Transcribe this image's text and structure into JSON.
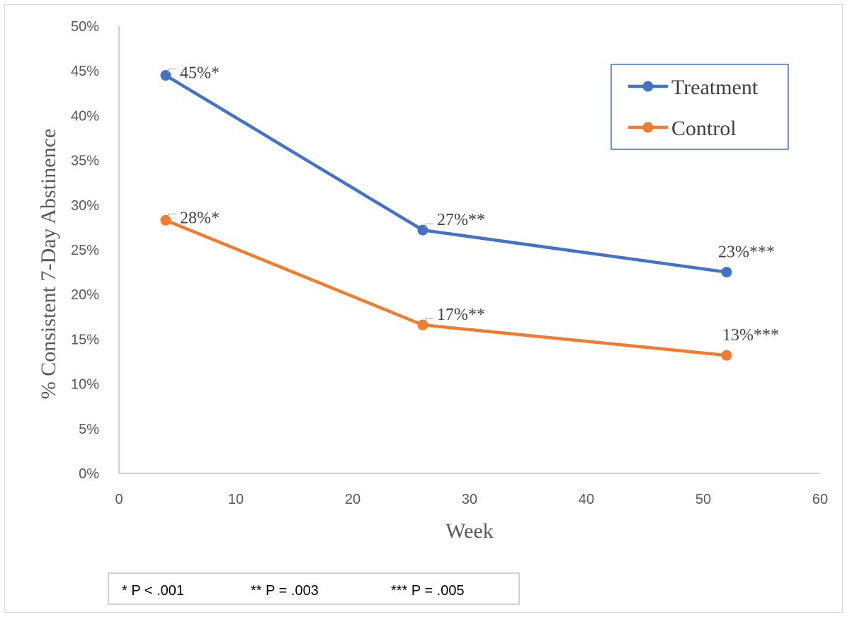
{
  "colors": {
    "treatment": "#4472C4",
    "control": "#ED7D31",
    "axis": "#BFBFBF",
    "legend_border": "#4472C4"
  },
  "chart_data": {
    "type": "line",
    "xlabel": "Week",
    "ylabel": "% Consistent 7-Day Abstinence",
    "xlim": [
      0,
      60
    ],
    "ylim": [
      0,
      0.5
    ],
    "x_ticks": [
      0,
      10,
      20,
      30,
      40,
      50,
      60
    ],
    "y_ticks": [
      "0%",
      "5%",
      "10%",
      "15%",
      "20%",
      "25%",
      "30%",
      "35%",
      "40%",
      "45%",
      "50%"
    ],
    "grid": false,
    "legend_position": "top-right",
    "series": [
      {
        "name": "Treatment",
        "x": [
          4,
          26,
          52
        ],
        "y": [
          0.445,
          0.272,
          0.225
        ],
        "labels": [
          "45%*",
          "27%**",
          "23%***"
        ]
      },
      {
        "name": "Control",
        "x": [
          4,
          26,
          52
        ],
        "y": [
          0.283,
          0.166,
          0.132
        ],
        "labels": [
          "28%*",
          "17%**",
          "13%***"
        ]
      }
    ],
    "notes": [
      "* P < .001",
      "** P = .003",
      "*** P = .005"
    ]
  }
}
